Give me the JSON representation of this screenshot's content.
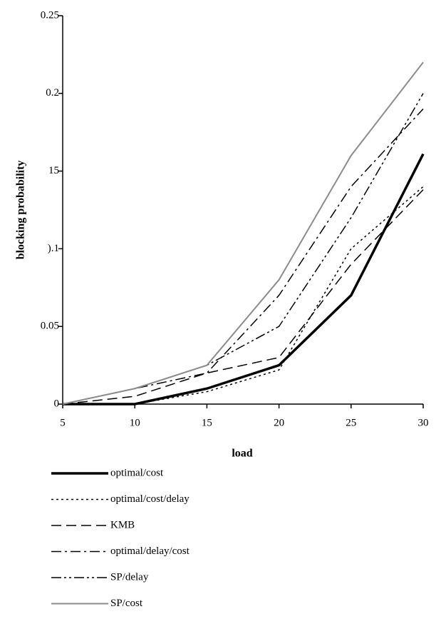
{
  "chart_data": {
    "type": "line",
    "x_label": "load",
    "y_label": "blocking probability",
    "x": [
      5,
      10,
      15,
      20,
      25,
      30
    ],
    "xlim": [
      5,
      30
    ],
    "xticks": [
      5,
      10,
      15,
      20,
      25,
      30
    ],
    "ylim": [
      0,
      0.25
    ],
    "yticks": [
      0,
      0.05,
      {
        "value": 0.1,
        "label": ").1"
      },
      {
        "value": 0.15,
        "label": "15"
      },
      0.2,
      0.25
    ],
    "series": [
      {
        "name": "optimal/cost",
        "color": "#000000",
        "width": 3.5,
        "dash": "none",
        "values": [
          0,
          0,
          0.01,
          0.025,
          0.07,
          0.161
        ]
      },
      {
        "name": "optimal/cost/delay",
        "color": "#000000",
        "width": 1.5,
        "dash": "3,4",
        "values": [
          0,
          0,
          0.008,
          0.022,
          0.1,
          0.14
        ]
      },
      {
        "name": "KMB",
        "color": "#000000",
        "width": 1.5,
        "dash": "14,7",
        "values": [
          0,
          0.005,
          0.02,
          0.03,
          0.09,
          0.138
        ]
      },
      {
        "name": "optimal/delay/cost",
        "color": "#000000",
        "width": 1.5,
        "dash": "14,5,3,5",
        "values": [
          0,
          0.01,
          0.02,
          0.07,
          0.14,
          0.19
        ]
      },
      {
        "name": "SP/delay",
        "color": "#000000",
        "width": 1.5,
        "dash": "14,4,3,4,3,4",
        "values": [
          0,
          0.01,
          0.025,
          0.05,
          0.12,
          0.2
        ]
      },
      {
        "name": "SP/cost",
        "color": "#8c8c8c",
        "width": 2,
        "dash": "none",
        "values": [
          0,
          0.01,
          0.025,
          0.08,
          0.16,
          0.22
        ]
      }
    ]
  }
}
